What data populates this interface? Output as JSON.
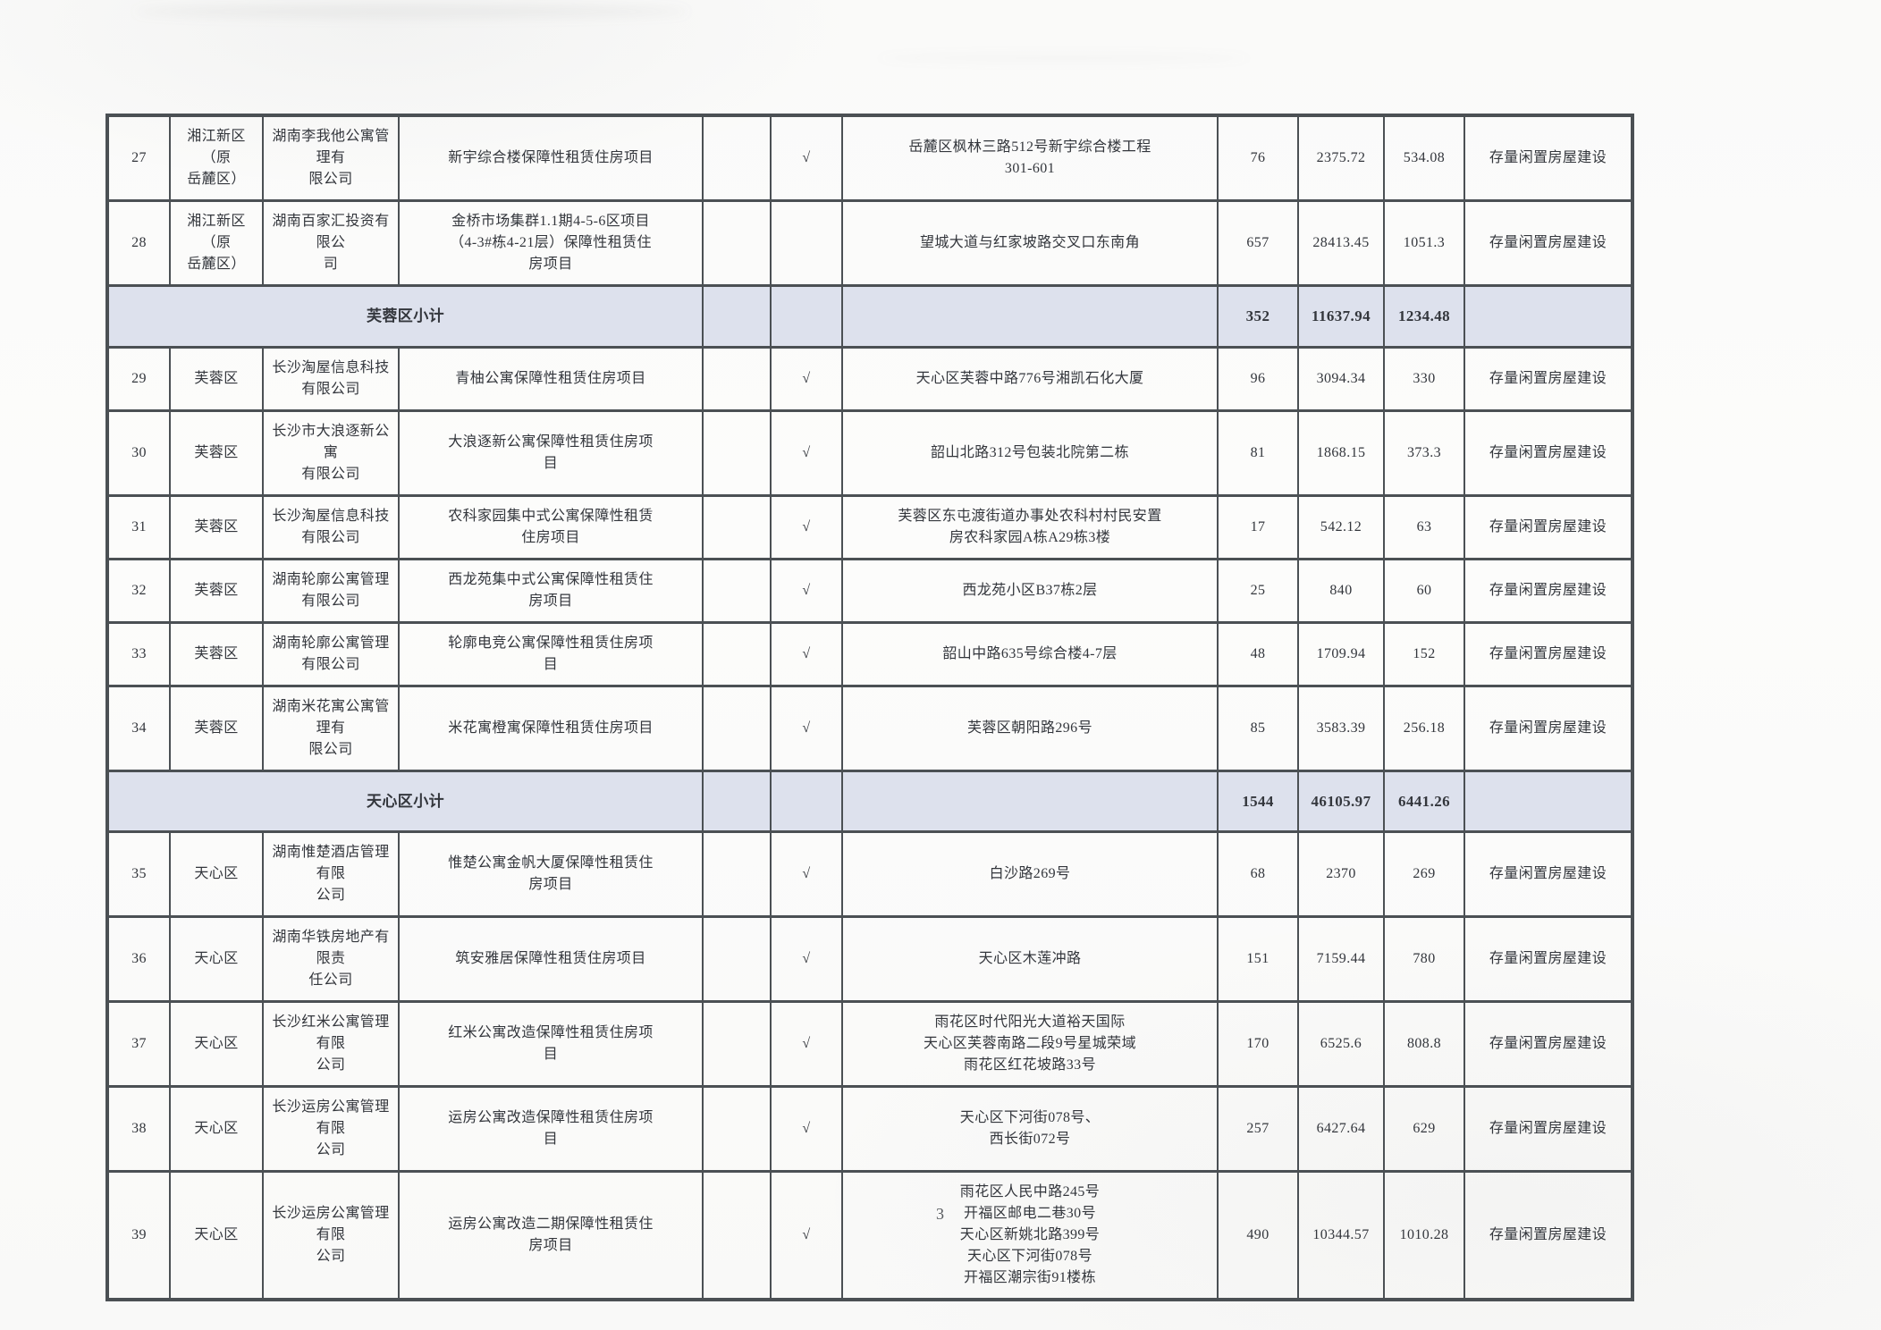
{
  "page": {
    "number": "3"
  },
  "colors": {
    "border": "#4b5054",
    "text": "#33363c",
    "subtotal_bg": "#dde1ed"
  },
  "table": {
    "check_symbol": "√",
    "category_default": "存量闲置房屋建设",
    "rows": [
      {
        "type": "data",
        "no": "27",
        "district": "湘江新区（原\n岳麓区）",
        "company": "湖南李我他公寓管理有\n限公司",
        "project": "新宇综合楼保障性租赁住房项目",
        "check": "√",
        "address": "岳麓区枫林三路512号新宇综合楼工程\n301-601",
        "units": "76",
        "area1": "2375.72",
        "area2": "534.08",
        "category": "存量闲置房屋建设"
      },
      {
        "type": "data",
        "no": "28",
        "district": "湘江新区（原\n岳麓区）",
        "company": "湖南百家汇投资有限公\n司",
        "project": "金桥市场集群1.1期4-5-6区项目\n（4-3#栋4-21层）保障性租赁住\n房项目",
        "check": "",
        "address": "望城大道与红家坡路交叉口东南角",
        "units": "657",
        "area1": "28413.45",
        "area2": "1051.3",
        "category": "存量闲置房屋建设"
      },
      {
        "type": "subtotal",
        "label": "芙蓉区小计",
        "units": "352",
        "area1": "11637.94",
        "area2": "1234.48"
      },
      {
        "type": "data",
        "no": "29",
        "district": "芙蓉区",
        "company": "长沙淘屋信息科技\n有限公司",
        "project": "青柚公寓保障性租赁住房项目",
        "check": "√",
        "address": "天心区芙蓉中路776号湘凯石化大厦",
        "units": "96",
        "area1": "3094.34",
        "area2": "330",
        "category": "存量闲置房屋建设"
      },
      {
        "type": "data",
        "no": "30",
        "district": "芙蓉区",
        "company": "长沙市大浪逐新公寓\n有限公司",
        "project": "大浪逐新公寓保障性租赁住房项\n目",
        "check": "√",
        "address": "韶山北路312号包装北院第二栋",
        "units": "81",
        "area1": "1868.15",
        "area2": "373.3",
        "category": "存量闲置房屋建设"
      },
      {
        "type": "data",
        "no": "31",
        "district": "芙蓉区",
        "company": "长沙淘屋信息科技\n有限公司",
        "project": "农科家园集中式公寓保障性租赁\n住房项目",
        "check": "√",
        "address": "芙蓉区东屯渡街道办事处农科村村民安置\n房农科家园A栋A29栋3楼",
        "units": "17",
        "area1": "542.12",
        "area2": "63",
        "category": "存量闲置房屋建设"
      },
      {
        "type": "data",
        "no": "32",
        "district": "芙蓉区",
        "company": "湖南轮廓公寓管理\n有限公司",
        "project": "西龙苑集中式公寓保障性租赁住\n房项目",
        "check": "√",
        "address": "西龙苑小区B37栋2层",
        "units": "25",
        "area1": "840",
        "area2": "60",
        "category": "存量闲置房屋建设"
      },
      {
        "type": "data",
        "no": "33",
        "district": "芙蓉区",
        "company": "湖南轮廓公寓管理\n有限公司",
        "project": "轮廓电竞公寓保障性租赁住房项\n目",
        "check": "√",
        "address": "韶山中路635号综合楼4-7层",
        "units": "48",
        "area1": "1709.94",
        "area2": "152",
        "category": "存量闲置房屋建设"
      },
      {
        "type": "data",
        "no": "34",
        "district": "芙蓉区",
        "company": "湖南米花寓公寓管理有\n限公司",
        "project": "米花寓橙寓保障性租赁住房项目",
        "check": "√",
        "address": "芙蓉区朝阳路296号",
        "units": "85",
        "area1": "3583.39",
        "area2": "256.18",
        "category": "存量闲置房屋建设"
      },
      {
        "type": "subtotal",
        "label": "天心区小计",
        "units": "1544",
        "area1": "46105.97",
        "area2": "6441.26"
      },
      {
        "type": "data",
        "no": "35",
        "district": "天心区",
        "company": "湖南惟楚酒店管理有限\n公司",
        "project": "惟楚公寓金帆大厦保障性租赁住\n房项目",
        "check": "√",
        "address": "白沙路269号",
        "units": "68",
        "area1": "2370",
        "area2": "269",
        "category": "存量闲置房屋建设"
      },
      {
        "type": "data",
        "no": "36",
        "district": "天心区",
        "company": "湖南华铁房地产有限责\n任公司",
        "project": "筑安雅居保障性租赁住房项目",
        "check": "√",
        "address": "天心区木莲冲路",
        "units": "151",
        "area1": "7159.44",
        "area2": "780",
        "category": "存量闲置房屋建设"
      },
      {
        "type": "data",
        "no": "37",
        "district": "天心区",
        "company": "长沙红米公寓管理有限\n公司",
        "project": "红米公寓改造保障性租赁住房项\n目",
        "check": "√",
        "address": "雨花区时代阳光大道裕天国际\n天心区芙蓉南路二段9号星城荣域\n雨花区红花坡路33号",
        "units": "170",
        "area1": "6525.6",
        "area2": "808.8",
        "category": "存量闲置房屋建设"
      },
      {
        "type": "data",
        "no": "38",
        "district": "天心区",
        "company": "长沙运房公寓管理有限\n公司",
        "project": "运房公寓改造保障性租赁住房项\n目",
        "check": "√",
        "address": "天心区下河街078号、\n西长街072号",
        "units": "257",
        "area1": "6427.64",
        "area2": "629",
        "category": "存量闲置房屋建设"
      },
      {
        "type": "data",
        "no": "39",
        "district": "天心区",
        "company": "长沙运房公寓管理有限\n公司",
        "project": "运房公寓改造二期保障性租赁住\n房项目",
        "check": "√",
        "address": "雨花区人民中路245号\n开福区邮电二巷30号\n天心区新姚北路399号\n天心区下河街078号\n开福区潮宗街91楼栋",
        "units": "490",
        "area1": "10344.57",
        "area2": "1010.28",
        "category": "存量闲置房屋建设"
      }
    ]
  }
}
